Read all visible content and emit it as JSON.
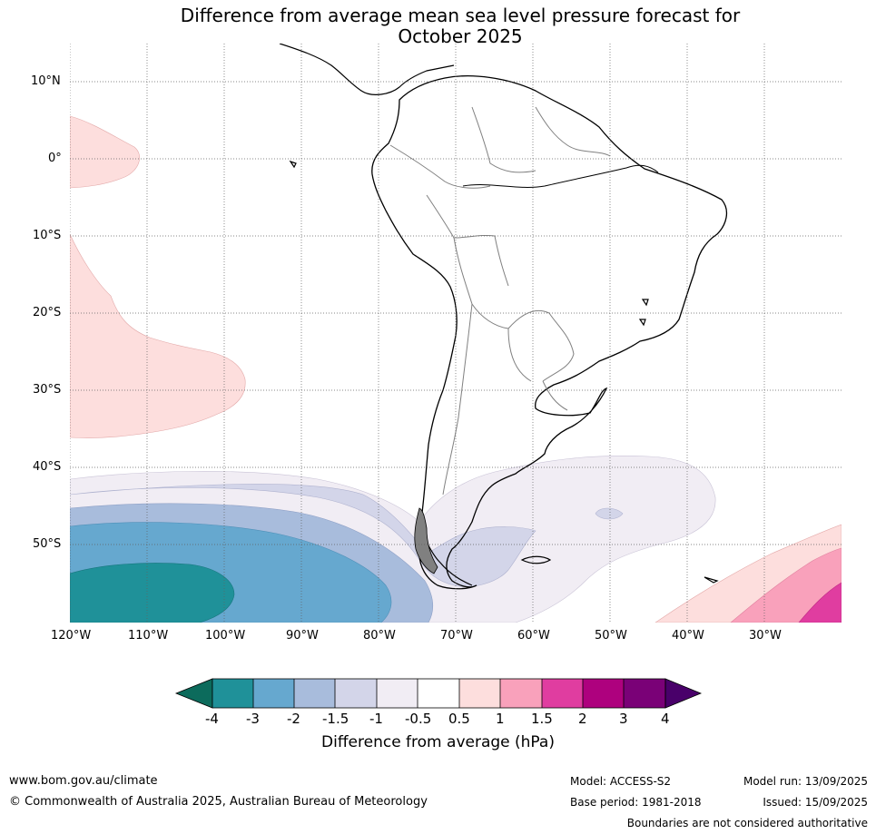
{
  "title_line1": "Difference from average mean sea level pressure forecast for",
  "title_line2": "October 2025",
  "lat_labels": [
    "10°N",
    "0°",
    "10°S",
    "20°S",
    "30°S",
    "40°S",
    "50°S"
  ],
  "lon_labels": [
    "120°W",
    "110°W",
    "100°W",
    "90°W",
    "80°W",
    "70°W",
    "60°W",
    "50°W",
    "40°W",
    "30°W"
  ],
  "legend": {
    "ticks": [
      "-4",
      "-3",
      "-2",
      "-1.5",
      "-1",
      "-0.5",
      "0.5",
      "1",
      "1.5",
      "2",
      "3",
      "4"
    ],
    "title": "Difference from average (hPa)",
    "colors": {
      "below_-4": "#0c6b5c",
      "-4_-3": "#1f9199",
      "-3_-2": "#66a8cf",
      "-2_-1.5": "#a8bcdc",
      "-1.5_-1": "#d3d5e9",
      "-1_-0.5": "#f1edf4",
      "-0.5_0.5": "#ffffff",
      "0.5_1": "#fddedd",
      "1_1.5": "#f9a1bb",
      "1.5_2": "#e03da0",
      "2_3": "#ae017e",
      "3_4": "#7a0177",
      "above_4": "#49006a"
    }
  },
  "footer": {
    "url": "www.bom.gov.au/climate",
    "copyright": "© Commonwealth of Australia 2025, Australian Bureau of Meteorology",
    "model": "Model: ACCESS-S2",
    "base_period": "Base period: 1981-2018",
    "model_run": "Model run: 13/09/2025",
    "issued": "Issued: 15/09/2025",
    "disclaimer": "Boundaries are not considered authoritative"
  }
}
